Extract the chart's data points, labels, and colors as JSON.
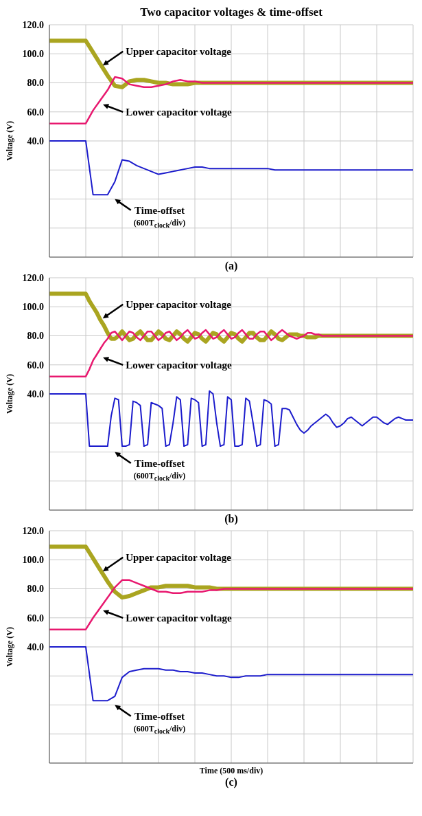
{
  "chart_data": [
    {
      "type": "line",
      "title": "Two capacitor voltages & time-offset",
      "ylabel": "Voltage (V)",
      "categories": [
        null,
        null,
        null,
        null,
        null,
        null,
        null,
        null,
        null,
        null,
        null,
        null,
        null,
        null,
        null,
        null,
        null,
        null,
        null,
        null,
        null,
        null,
        null,
        null,
        null,
        null,
        null,
        null,
        null,
        null,
        null,
        null,
        null,
        null,
        null,
        null,
        null,
        null,
        null,
        null,
        null,
        null,
        null,
        null,
        null,
        null,
        null,
        null,
        null,
        null,
        null
      ],
      "ylim": [
        -40,
        120
      ],
      "yticks": [
        {
          "value": -40,
          "label": null
        },
        {
          "value": -20,
          "label": null
        },
        {
          "value": 0,
          "label": null
        },
        {
          "value": 20,
          "label": null
        },
        {
          "value": 40,
          "label": "40.0"
        },
        {
          "value": 60,
          "label": "60.0"
        },
        {
          "value": 80,
          "label": "80.0"
        },
        {
          "value": 100,
          "label": "100.0"
        },
        {
          "value": 120,
          "label": "120.0"
        }
      ],
      "tick_labels": "y",
      "grid": true,
      "marker": "none",
      "line_style": "solid",
      "annotations": [
        "Upper capacitor voltage",
        "Lower capacitor voltage",
        "Time-offset\n(600T$_{clock}$/div)",
        "(a)"
      ],
      "series": [
        {
          "color": "#aaa520",
          "values": [
            109,
            109,
            109,
            109,
            109,
            109,
            101,
            93,
            85,
            78,
            77,
            81,
            82,
            82,
            81,
            80,
            80,
            79,
            79,
            79,
            80,
            80,
            80,
            80,
            80,
            80,
            80,
            80,
            80,
            80,
            80,
            80,
            80,
            80,
            80,
            80,
            80,
            80,
            80,
            80,
            80,
            80,
            80,
            80,
            80,
            80,
            80,
            80,
            80,
            80,
            80
          ]
        },
        {
          "color": "#e8186f",
          "values": [
            52,
            52,
            52,
            52,
            52,
            52,
            61,
            68,
            75,
            84,
            83,
            79,
            78,
            77,
            77,
            78,
            79,
            81,
            82,
            81,
            81,
            80,
            80,
            80,
            80,
            80,
            80,
            80,
            80,
            80,
            80,
            80,
            80,
            80,
            80,
            80,
            80,
            80,
            80,
            80,
            80,
            80,
            80,
            80,
            80,
            80,
            80,
            80,
            80,
            80,
            80
          ]
        },
        {
          "color": "#1c1ccc",
          "values": [
            40,
            40,
            40,
            40,
            40,
            40,
            3,
            3,
            3,
            12,
            27,
            26,
            23,
            21,
            19,
            17,
            18,
            19,
            20,
            21,
            22,
            22,
            21,
            21,
            21,
            21,
            21,
            21,
            21,
            21,
            21,
            20,
            20,
            20,
            20,
            20,
            20,
            20,
            20,
            20,
            20,
            20,
            20,
            20,
            20,
            20,
            20,
            20,
            20,
            20,
            20
          ]
        }
      ]
    },
    {
      "type": "line",
      "ylabel": "Voltage (V)",
      "categories": [
        null,
        null,
        null,
        null,
        null,
        null,
        null,
        null,
        null,
        null,
        null,
        null,
        null,
        null,
        null,
        null,
        null,
        null,
        null,
        null,
        null,
        null,
        null,
        null,
        null,
        null,
        null,
        null,
        null,
        null,
        null,
        null,
        null,
        null,
        null,
        null,
        null,
        null,
        null,
        null,
        null,
        null,
        null,
        null,
        null,
        null,
        null,
        null,
        null,
        null,
        null,
        null,
        null,
        null,
        null,
        null,
        null,
        null,
        null,
        null,
        null,
        null,
        null,
        null,
        null,
        null,
        null,
        null,
        null,
        null,
        null,
        null,
        null,
        null,
        null,
        null,
        null,
        null,
        null,
        null,
        null,
        null,
        null,
        null,
        null,
        null,
        null,
        null,
        null,
        null,
        null,
        null,
        null,
        null,
        null,
        null,
        null,
        null,
        null,
        null,
        null
      ],
      "ylim": [
        -40,
        120
      ],
      "yticks": [
        {
          "value": -40,
          "label": null
        },
        {
          "value": -20,
          "label": null
        },
        {
          "value": 0,
          "label": null
        },
        {
          "value": 20,
          "label": null
        },
        {
          "value": 40,
          "label": "40.0"
        },
        {
          "value": 60,
          "label": "60.0"
        },
        {
          "value": 80,
          "label": "80.0"
        },
        {
          "value": 100,
          "label": "100.0"
        },
        {
          "value": 120,
          "label": "120.0"
        }
      ],
      "tick_labels": "y",
      "grid": true,
      "marker": "none",
      "line_style": "solid",
      "annotations": [
        "Upper capacitor voltage",
        "Lower capacitor voltage",
        "Time-offset\n(600T$_{clock}$/div)",
        "(b)"
      ],
      "series": [
        {
          "color": "#aaa520",
          "values": [
            109,
            109,
            109,
            109,
            109,
            109,
            109,
            109,
            109,
            109,
            109,
            104,
            100,
            96,
            91,
            87,
            82,
            78,
            78,
            80,
            83,
            80,
            77,
            78,
            81,
            83,
            80,
            77,
            77,
            80,
            83,
            81,
            78,
            77,
            80,
            83,
            81,
            78,
            76,
            79,
            82,
            81,
            78,
            76,
            79,
            82,
            81,
            78,
            76,
            79,
            82,
            81,
            78,
            76,
            79,
            82,
            82,
            79,
            77,
            77,
            80,
            83,
            81,
            78,
            77,
            79,
            81,
            81,
            81,
            80,
            80,
            79,
            79,
            79,
            80,
            80,
            80,
            80,
            80,
            80,
            80,
            80,
            80,
            80,
            80,
            80,
            80,
            80,
            80,
            80,
            80,
            80,
            80,
            80,
            80,
            80,
            80,
            80,
            80,
            80,
            80
          ]
        },
        {
          "color": "#e8186f",
          "values": [
            52,
            52,
            52,
            52,
            52,
            52,
            52,
            52,
            52,
            52,
            52,
            57,
            63,
            67,
            71,
            75,
            78,
            82,
            83,
            80,
            77,
            80,
            83,
            82,
            79,
            77,
            80,
            83,
            83,
            80,
            77,
            79,
            82,
            83,
            80,
            77,
            79,
            82,
            84,
            81,
            78,
            79,
            82,
            84,
            81,
            78,
            79,
            82,
            84,
            81,
            78,
            79,
            82,
            84,
            81,
            78,
            78,
            81,
            83,
            83,
            80,
            77,
            79,
            82,
            84,
            82,
            80,
            79,
            78,
            79,
            80,
            82,
            82,
            81,
            81,
            80,
            80,
            80,
            80,
            80,
            80,
            80,
            80,
            80,
            80,
            80,
            80,
            80,
            80,
            80,
            80,
            80,
            80,
            80,
            80,
            80,
            80,
            80,
            80,
            80,
            80
          ]
        },
        {
          "color": "#1c1ccc",
          "values": [
            40,
            40,
            40,
            40,
            40,
            40,
            40,
            40,
            40,
            40,
            40,
            4,
            4,
            4,
            4,
            4,
            4,
            25,
            37,
            36,
            4,
            4,
            5,
            35,
            34,
            32,
            4,
            5,
            34,
            33,
            32,
            30,
            4,
            5,
            20,
            38,
            36,
            4,
            5,
            37,
            36,
            34,
            4,
            5,
            42,
            40,
            20,
            4,
            5,
            38,
            36,
            4,
            4,
            5,
            37,
            35,
            20,
            4,
            5,
            36,
            35,
            33,
            4,
            5,
            30,
            30,
            29,
            24,
            19,
            15,
            13,
            15,
            18,
            20,
            22,
            24,
            26,
            24,
            20,
            17,
            18,
            20,
            23,
            24,
            22,
            20,
            18,
            20,
            22,
            24,
            24,
            22,
            20,
            19,
            21,
            23,
            24,
            23,
            22,
            22,
            22
          ]
        }
      ]
    },
    {
      "type": "line",
      "ylabel": "Voltage (V)",
      "xlabel": "Time (500 ms/div)",
      "categories": [
        null,
        null,
        null,
        null,
        null,
        null,
        null,
        null,
        null,
        null,
        null,
        null,
        null,
        null,
        null,
        null,
        null,
        null,
        null,
        null,
        null,
        null,
        null,
        null,
        null,
        null,
        null,
        null,
        null,
        null,
        null,
        null,
        null,
        null,
        null,
        null,
        null,
        null,
        null,
        null,
        null,
        null,
        null,
        null,
        null,
        null,
        null,
        null,
        null,
        null,
        null
      ],
      "ylim": [
        -40,
        120
      ],
      "yticks": [
        {
          "value": -40,
          "label": null
        },
        {
          "value": -20,
          "label": null
        },
        {
          "value": 0,
          "label": null
        },
        {
          "value": 20,
          "label": null
        },
        {
          "value": 40,
          "label": "40.0"
        },
        {
          "value": 60,
          "label": "60.0"
        },
        {
          "value": 80,
          "label": "80.0"
        },
        {
          "value": 100,
          "label": "100.0"
        },
        {
          "value": 120,
          "label": "120.0"
        }
      ],
      "tick_labels": "y",
      "grid": true,
      "marker": "none",
      "line_style": "solid",
      "annotations": [
        "Upper capacitor voltage",
        "Lower capacitor voltage",
        "Time-offset\n(600T$_{clock}$/div)",
        "(c)"
      ],
      "series": [
        {
          "color": "#aaa520",
          "values": [
            109,
            109,
            109,
            109,
            109,
            109,
            101,
            93,
            85,
            78,
            74,
            75,
            77,
            79,
            81,
            81,
            82,
            82,
            82,
            82,
            81,
            81,
            81,
            80,
            80,
            80,
            80,
            80,
            80,
            80,
            80,
            80,
            80,
            80,
            80,
            80,
            80,
            80,
            80,
            80,
            80,
            80,
            80,
            80,
            80,
            80,
            80,
            80,
            80,
            80,
            80
          ]
        },
        {
          "color": "#e8186f",
          "values": [
            52,
            52,
            52,
            52,
            52,
            52,
            60,
            67,
            74,
            81,
            86,
            86,
            84,
            82,
            80,
            78,
            78,
            77,
            77,
            78,
            78,
            78,
            79,
            79,
            80,
            80,
            80,
            80,
            80,
            80,
            80,
            80,
            80,
            80,
            80,
            80,
            80,
            80,
            80,
            80,
            80,
            80,
            80,
            80,
            80,
            80,
            80,
            80,
            80,
            80,
            80
          ]
        },
        {
          "color": "#1c1ccc",
          "values": [
            40,
            40,
            40,
            40,
            40,
            40,
            3,
            3,
            3,
            6,
            19,
            23,
            24,
            25,
            25,
            25,
            24,
            24,
            23,
            23,
            22,
            22,
            21,
            20,
            20,
            19,
            19,
            20,
            20,
            20,
            21,
            21,
            21,
            21,
            21,
            21,
            21,
            21,
            21,
            21,
            21,
            21,
            21,
            21,
            21,
            21,
            21,
            21,
            21,
            21,
            21
          ]
        }
      ]
    }
  ]
}
